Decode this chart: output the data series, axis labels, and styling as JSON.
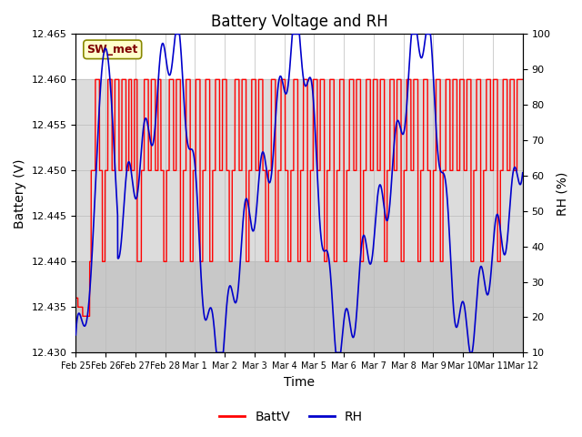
{
  "title": "Battery Voltage and RH",
  "xlabel": "Time",
  "ylabel_left": "Battery (V)",
  "ylabel_right": "RH (%)",
  "annotation": "SW_met",
  "ylim_left": [
    12.43,
    12.465
  ],
  "ylim_right": [
    10,
    100
  ],
  "yticks_left": [
    12.43,
    12.435,
    12.44,
    12.445,
    12.45,
    12.455,
    12.46,
    12.465
  ],
  "yticks_right": [
    10,
    20,
    30,
    40,
    50,
    60,
    70,
    80,
    90,
    100
  ],
  "xtick_labels": [
    "Feb 25",
    "Feb 26",
    "Feb 27",
    "Feb 28",
    "Mar 1",
    "Mar 2",
    "Mar 3",
    "Mar 4",
    "Mar 5",
    "Mar 6",
    "Mar 7",
    "Mar 8",
    "Mar 9",
    "Mar 10",
    "Mar 11",
    "Mar 12"
  ],
  "n_days": 16,
  "bg_band_upper_color": "#dcdcdc",
  "bg_band_lower_color": "#c8c8c8",
  "batt_color": "#ff0000",
  "rh_color": "#0000cc",
  "legend_batt": "BattV",
  "legend_rh": "RH",
  "title_fontsize": 12,
  "axis_label_fontsize": 10,
  "annot_facecolor": "#ffffcc",
  "annot_edgecolor": "#888800",
  "annot_textcolor": "#800000"
}
